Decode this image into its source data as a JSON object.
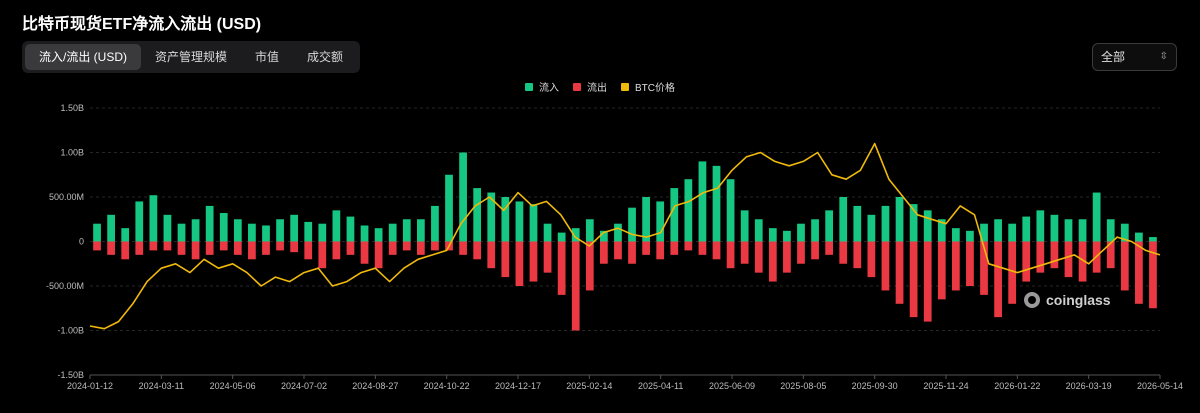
{
  "title": "比特币现货ETF净流入流出 (USD)",
  "tabs": [
    {
      "label": "流入/流出 (USD)",
      "active": true
    },
    {
      "label": "资产管理规模",
      "active": false
    },
    {
      "label": "市值",
      "active": false
    },
    {
      "label": "成交额",
      "active": false
    }
  ],
  "range_select": {
    "value": "全部",
    "icon": "updown-chevron-icon"
  },
  "watermark": "coinglass",
  "chart_data": {
    "type": "bar",
    "legend_position": "top-center",
    "grid": true,
    "legend": [
      {
        "name": "流入",
        "color": "#16c784"
      },
      {
        "name": "流出",
        "color": "#ea3943"
      },
      {
        "name": "BTC价格",
        "color": "#f0b90b"
      }
    ],
    "x_ticks": [
      "2024-01-12",
      "2024-03-11",
      "2024-05-06",
      "2024-07-02",
      "2024-08-27",
      "2024-10-22",
      "2024-12-17",
      "2025-02-14",
      "2025-04-11",
      "2025-06-09",
      "2025-08-05",
      "2025-09-30",
      "2025-11-24",
      "2026-01-22",
      "2026-03-19",
      "2026-05-14"
    ],
    "y_ticks": [
      "1.50B",
      "1.00B",
      "500.00M",
      "0",
      "-500.00M",
      "-1.00B",
      "-1.50B"
    ],
    "ylim": [
      -1500000000,
      1500000000
    ],
    "series": [
      {
        "name": "流入",
        "type": "bar",
        "color": "#16c784",
        "values": [
          200000000,
          300000000,
          150000000,
          450000000,
          520000000,
          300000000,
          200000000,
          250000000,
          400000000,
          320000000,
          250000000,
          200000000,
          180000000,
          250000000,
          300000000,
          220000000,
          200000000,
          350000000,
          280000000,
          180000000,
          150000000,
          200000000,
          250000000,
          250000000,
          400000000,
          750000000,
          1000000000,
          600000000,
          550000000,
          500000000,
          450000000,
          420000000,
          200000000,
          100000000,
          150000000,
          250000000,
          120000000,
          200000000,
          380000000,
          500000000,
          450000000,
          600000000,
          700000000,
          900000000,
          850000000,
          700000000,
          350000000,
          250000000,
          150000000,
          120000000,
          200000000,
          250000000,
          350000000,
          500000000,
          400000000,
          300000000,
          400000000,
          500000000,
          420000000,
          350000000,
          250000000,
          150000000,
          120000000,
          200000000,
          250000000,
          200000000,
          280000000,
          350000000,
          300000000,
          250000000,
          250000000,
          550000000,
          250000000,
          200000000,
          100000000,
          50000000
        ]
      },
      {
        "name": "流出",
        "type": "bar",
        "color": "#ea3943",
        "values": [
          -100000000,
          -150000000,
          -200000000,
          -150000000,
          -100000000,
          -100000000,
          -150000000,
          -200000000,
          -150000000,
          -100000000,
          -150000000,
          -200000000,
          -150000000,
          -100000000,
          -120000000,
          -200000000,
          -300000000,
          -200000000,
          -150000000,
          -250000000,
          -300000000,
          -150000000,
          -100000000,
          -150000000,
          -100000000,
          -100000000,
          -150000000,
          -200000000,
          -300000000,
          -400000000,
          -500000000,
          -450000000,
          -350000000,
          -600000000,
          -1000000000,
          -550000000,
          -250000000,
          -200000000,
          -250000000,
          -150000000,
          -200000000,
          -150000000,
          -100000000,
          -150000000,
          -200000000,
          -300000000,
          -250000000,
          -350000000,
          -450000000,
          -350000000,
          -250000000,
          -200000000,
          -150000000,
          -250000000,
          -300000000,
          -400000000,
          -550000000,
          -700000000,
          -850000000,
          -900000000,
          -650000000,
          -550000000,
          -500000000,
          -600000000,
          -850000000,
          -700000000,
          -450000000,
          -350000000,
          -300000000,
          -400000000,
          -450000000,
          -350000000,
          -300000000,
          -550000000,
          -700000000,
          -750000000
        ]
      },
      {
        "name": "BTC价格",
        "type": "line",
        "color": "#f0b90b",
        "values": [
          -950000000,
          -980000000,
          -900000000,
          -700000000,
          -450000000,
          -300000000,
          -250000000,
          -350000000,
          -200000000,
          -300000000,
          -250000000,
          -350000000,
          -500000000,
          -400000000,
          -450000000,
          -350000000,
          -300000000,
          -500000000,
          -450000000,
          -350000000,
          -300000000,
          -450000000,
          -300000000,
          -200000000,
          -150000000,
          -100000000,
          200000000,
          400000000,
          500000000,
          350000000,
          550000000,
          400000000,
          450000000,
          300000000,
          50000000,
          -50000000,
          100000000,
          150000000,
          80000000,
          50000000,
          100000000,
          400000000,
          450000000,
          550000000,
          600000000,
          800000000,
          950000000,
          1000000000,
          900000000,
          850000000,
          900000000,
          1000000000,
          750000000,
          700000000,
          800000000,
          1100000000,
          700000000,
          500000000,
          300000000,
          250000000,
          200000000,
          400000000,
          300000000,
          -250000000,
          -300000000,
          -350000000,
          -300000000,
          -250000000,
          -200000000,
          -150000000,
          -250000000,
          -100000000,
          50000000,
          0,
          -100000000,
          -150000000
        ]
      }
    ]
  }
}
